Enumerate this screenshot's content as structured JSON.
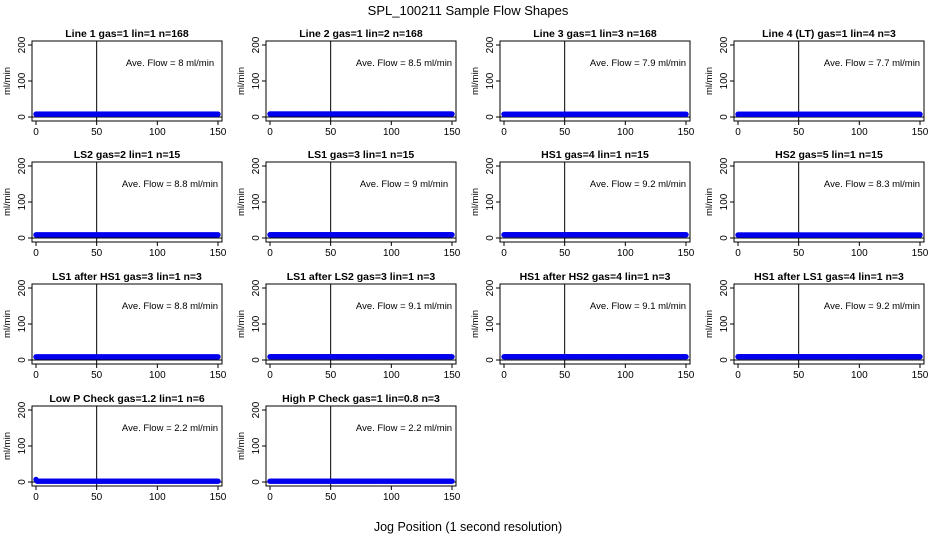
{
  "title": "SPL_100211  Sample Flow Shapes",
  "xlabel": "Jog Position (1 second resolution)",
  "colors": {
    "points": "#0000ee",
    "axis": "#000000"
  },
  "chart_data": [
    {
      "type": "scatter",
      "title": "Line 1 gas=1 lin=1 n=168",
      "ylabel": "ml/min",
      "annotation": "Ave. Flow =  8  ml/min",
      "x_ticks": [
        0,
        50,
        100,
        150
      ],
      "y_ticks": [
        0,
        100,
        200
      ],
      "xlim": [
        0,
        150
      ],
      "ylim": [
        0,
        200
      ],
      "vline_x": 50,
      "hline_y": 0,
      "series": [
        {
          "x_start": 0,
          "x_end": 150,
          "y": 8
        }
      ]
    },
    {
      "type": "scatter",
      "title": "Line 2 gas=1 lin=2 n=168",
      "ylabel": "ml/min",
      "annotation": "Ave. Flow =  8.5  ml/min",
      "x_ticks": [
        0,
        50,
        100,
        150
      ],
      "y_ticks": [
        0,
        100,
        200
      ],
      "xlim": [
        0,
        150
      ],
      "ylim": [
        0,
        200
      ],
      "vline_x": 50,
      "hline_y": 0,
      "series": [
        {
          "x_start": 0,
          "x_end": 150,
          "y": 8.5
        }
      ]
    },
    {
      "type": "scatter",
      "title": "Line 3 gas=1 lin=3 n=168",
      "ylabel": "ml/min",
      "annotation": "Ave. Flow =  7.9  ml/min",
      "x_ticks": [
        0,
        50,
        100,
        150
      ],
      "y_ticks": [
        0,
        100,
        200
      ],
      "xlim": [
        0,
        150
      ],
      "ylim": [
        0,
        200
      ],
      "vline_x": 50,
      "hline_y": 0,
      "series": [
        {
          "x_start": 0,
          "x_end": 150,
          "y": 7.9
        }
      ]
    },
    {
      "type": "scatter",
      "title": "Line 4 (LT) gas=1 lin=4 n=3",
      "ylabel": "ml/min",
      "annotation": "Ave. Flow =  7.7  ml/min",
      "x_ticks": [
        0,
        50,
        100,
        150
      ],
      "y_ticks": [
        0,
        100,
        200
      ],
      "xlim": [
        0,
        150
      ],
      "ylim": [
        0,
        200
      ],
      "vline_x": 50,
      "hline_y": 0,
      "series": [
        {
          "x_start": 0,
          "x_end": 150,
          "y": 7.7
        }
      ]
    },
    {
      "type": "scatter",
      "title": "LS2 gas=2 lin=1 n=15",
      "ylabel": "ml/min",
      "annotation": "Ave. Flow =  8.8  ml/min",
      "x_ticks": [
        0,
        50,
        100,
        150
      ],
      "y_ticks": [
        0,
        100,
        200
      ],
      "xlim": [
        0,
        150
      ],
      "ylim": [
        0,
        200
      ],
      "vline_x": 50,
      "hline_y": 0,
      "series": [
        {
          "x_start": 0,
          "x_end": 150,
          "y": 8.8
        }
      ]
    },
    {
      "type": "scatter",
      "title": "LS1 gas=3 lin=1 n=15",
      "ylabel": "ml/min",
      "annotation": "Ave. Flow =  9  ml/min",
      "x_ticks": [
        0,
        50,
        100,
        150
      ],
      "y_ticks": [
        0,
        100,
        200
      ],
      "xlim": [
        0,
        150
      ],
      "ylim": [
        0,
        200
      ],
      "vline_x": 50,
      "hline_y": 0,
      "series": [
        {
          "x_start": 0,
          "x_end": 150,
          "y": 9
        }
      ]
    },
    {
      "type": "scatter",
      "title": "HS1 gas=4 lin=1 n=15",
      "ylabel": "ml/min",
      "annotation": "Ave. Flow =  9.2  ml/min",
      "x_ticks": [
        0,
        50,
        100,
        150
      ],
      "y_ticks": [
        0,
        100,
        200
      ],
      "xlim": [
        0,
        150
      ],
      "ylim": [
        0,
        200
      ],
      "vline_x": 50,
      "hline_y": 0,
      "series": [
        {
          "x_start": 0,
          "x_end": 150,
          "y": 9.2
        }
      ]
    },
    {
      "type": "scatter",
      "title": "HS2 gas=5 lin=1 n=15",
      "ylabel": "ml/min",
      "annotation": "Ave. Flow =  8.3  ml/min",
      "x_ticks": [
        0,
        50,
        100,
        150
      ],
      "y_ticks": [
        0,
        100,
        200
      ],
      "xlim": [
        0,
        150
      ],
      "ylim": [
        0,
        200
      ],
      "vline_x": 50,
      "hline_y": 0,
      "series": [
        {
          "x_start": 0,
          "x_end": 150,
          "y": 8.3
        }
      ]
    },
    {
      "type": "scatter",
      "title": "LS1 after HS1 gas=3 lin=1 n=3",
      "ylabel": "ml/min",
      "annotation": "Ave. Flow =  8.8  ml/min",
      "x_ticks": [
        0,
        50,
        100,
        150
      ],
      "y_ticks": [
        0,
        100,
        200
      ],
      "xlim": [
        0,
        150
      ],
      "ylim": [
        0,
        200
      ],
      "vline_x": 50,
      "hline_y": 0,
      "series": [
        {
          "x_start": 0,
          "x_end": 150,
          "y": 8.8
        }
      ]
    },
    {
      "type": "scatter",
      "title": "LS1 after LS2 gas=3 lin=1 n=3",
      "ylabel": "ml/min",
      "annotation": "Ave. Flow =  9.1  ml/min",
      "x_ticks": [
        0,
        50,
        100,
        150
      ],
      "y_ticks": [
        0,
        100,
        200
      ],
      "xlim": [
        0,
        150
      ],
      "ylim": [
        0,
        200
      ],
      "vline_x": 50,
      "hline_y": 0,
      "series": [
        {
          "x_start": 0,
          "x_end": 150,
          "y": 9.1
        }
      ]
    },
    {
      "type": "scatter",
      "title": "HS1 after HS2 gas=4 lin=1 n=3",
      "ylabel": "ml/min",
      "annotation": "Ave. Flow =  9.1  ml/min",
      "x_ticks": [
        0,
        50,
        100,
        150
      ],
      "y_ticks": [
        0,
        100,
        200
      ],
      "xlim": [
        0,
        150
      ],
      "ylim": [
        0,
        200
      ],
      "vline_x": 50,
      "hline_y": 0,
      "series": [
        {
          "x_start": 0,
          "x_end": 150,
          "y": 9.1
        }
      ]
    },
    {
      "type": "scatter",
      "title": "HS1 after LS1 gas=4 lin=1 n=3",
      "ylabel": "ml/min",
      "annotation": "Ave. Flow =  9.2  ml/min",
      "x_ticks": [
        0,
        50,
        100,
        150
      ],
      "y_ticks": [
        0,
        100,
        200
      ],
      "xlim": [
        0,
        150
      ],
      "ylim": [
        0,
        200
      ],
      "vline_x": 50,
      "hline_y": 0,
      "series": [
        {
          "x_start": 0,
          "x_end": 150,
          "y": 9.2
        }
      ]
    },
    {
      "type": "scatter",
      "title": "Low P Check gas=1.2 lin=1 n=6",
      "ylabel": "ml/min",
      "annotation": "Ave. Flow =  2.2  ml/min",
      "x_ticks": [
        0,
        50,
        100,
        150
      ],
      "y_ticks": [
        0,
        100,
        200
      ],
      "xlim": [
        0,
        150
      ],
      "ylim": [
        0,
        200
      ],
      "vline_x": 50,
      "hline_y": 0,
      "series": [
        {
          "x_start": 0,
          "x_end": 150,
          "y": 2.2,
          "first_y": 7
        }
      ]
    },
    {
      "type": "scatter",
      "title": "High P Check gas=1 lin=0.8 n=3",
      "ylabel": "ml/min",
      "annotation": "Ave. Flow =  2.2  ml/min",
      "x_ticks": [
        0,
        50,
        100,
        150
      ],
      "y_ticks": [
        0,
        100,
        200
      ],
      "xlim": [
        0,
        150
      ],
      "ylim": [
        0,
        200
      ],
      "vline_x": 50,
      "hline_y": 0,
      "series": [
        {
          "x_start": 0,
          "x_end": 150,
          "y": 2.2
        }
      ]
    }
  ]
}
